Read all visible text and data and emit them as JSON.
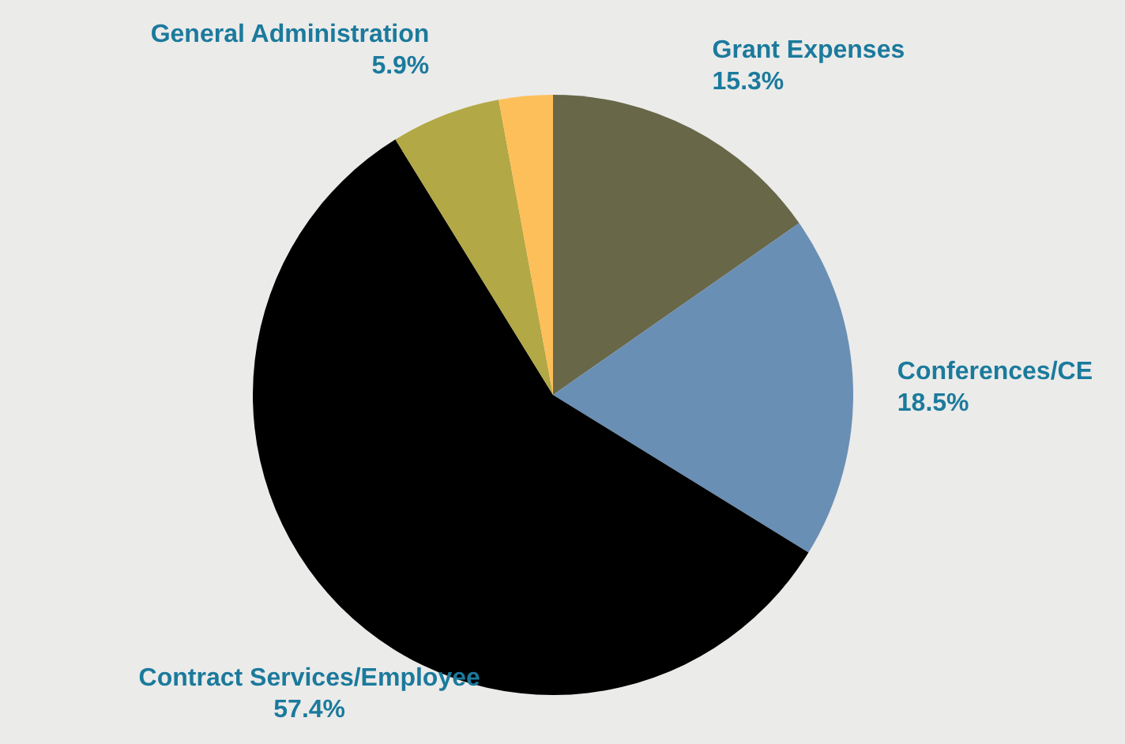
{
  "chart_data": {
    "type": "pie",
    "categories": [
      "Grant Expenses",
      "Conferences/CE",
      "Contract Services/Employee",
      "General Administration",
      null
    ],
    "values": [
      15.3,
      18.5,
      57.4,
      5.9,
      2.9
    ],
    "colors": [
      "#686748",
      "#6a8fb5",
      "#000000",
      "#b2a845",
      "#fdbf5a"
    ],
    "value_labels": [
      "15.3%",
      "18.5%",
      "57.4%",
      "5.9%",
      null
    ]
  }
}
